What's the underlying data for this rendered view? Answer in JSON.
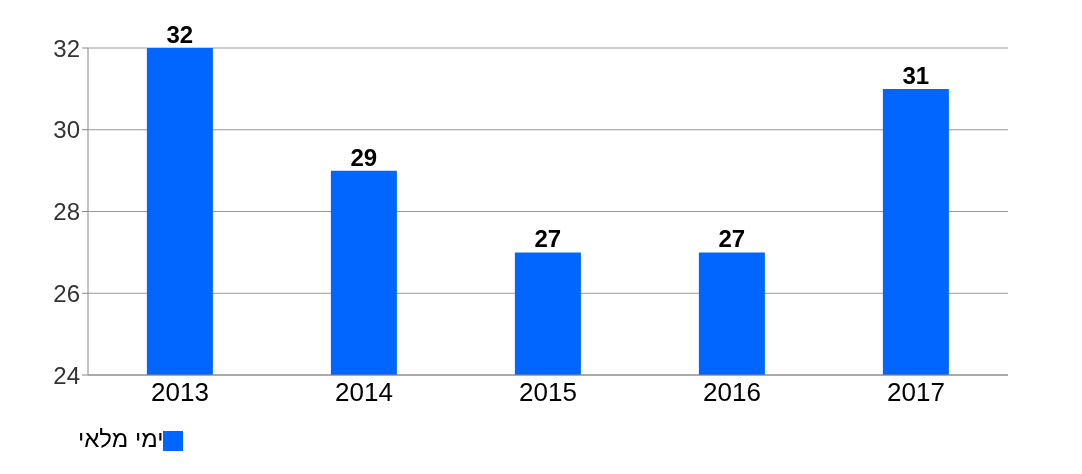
{
  "chart_data": {
    "type": "bar",
    "categories": [
      "2013",
      "2014",
      "2015",
      "2016",
      "2017"
    ],
    "series": [
      {
        "name": "ימי מלאי",
        "color": "#0066ff",
        "values": [
          32,
          29,
          27,
          27,
          31
        ]
      }
    ],
    "ylim": [
      24,
      32
    ],
    "yticks": [
      24,
      26,
      28,
      30,
      32
    ],
    "grid": "y",
    "legend": "bottom left",
    "data_labels": true
  }
}
